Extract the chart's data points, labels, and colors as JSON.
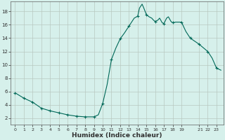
{
  "title": "",
  "xlabel": "Humidex (Indice chaleur)",
  "ylabel": "",
  "background_color": "#d6f0eb",
  "grid_color": "#b8c8c0",
  "line_color": "#006858",
  "marker_color": "#006858",
  "x_values": [
    0,
    1,
    2,
    3,
    4,
    5,
    6,
    7,
    8,
    9,
    9.5,
    10,
    10.5,
    11,
    11.5,
    12,
    12.5,
    13,
    13.3,
    13.6,
    14,
    14.2,
    14.5,
    14.7,
    15,
    15.3,
    15.6,
    15.8,
    16,
    16.3,
    16.5,
    16.8,
    17,
    17.3,
    17.5,
    17.8,
    18,
    18.3,
    18.5,
    19,
    19.5,
    20,
    21,
    22,
    22.5,
    23,
    23.5
  ],
  "y_values": [
    5.8,
    5.0,
    4.4,
    3.5,
    3.1,
    2.8,
    2.5,
    2.3,
    2.2,
    2.2,
    2.5,
    4.2,
    7.0,
    10.8,
    12.5,
    13.9,
    14.8,
    15.8,
    16.4,
    17.0,
    17.3,
    18.5,
    19.1,
    18.5,
    17.5,
    17.2,
    17.0,
    16.7,
    16.5,
    16.7,
    17.0,
    16.3,
    16.2,
    17.0,
    17.2,
    16.5,
    16.3,
    16.4,
    16.4,
    16.4,
    15.0,
    14.0,
    13.1,
    12.0,
    11.0,
    9.5,
    9.2
  ],
  "marker_x": [
    0,
    1,
    2,
    3,
    4,
    5,
    6,
    7,
    8,
    9,
    10,
    11,
    12,
    13,
    14,
    15,
    16,
    17,
    18,
    19,
    20,
    21,
    22,
    23
  ],
  "marker_y": [
    5.8,
    5.0,
    4.4,
    3.5,
    3.1,
    2.8,
    2.5,
    2.3,
    2.2,
    2.2,
    4.2,
    10.8,
    13.9,
    15.8,
    17.3,
    17.5,
    16.5,
    16.2,
    16.4,
    16.4,
    14.0,
    13.1,
    12.0,
    9.5
  ],
  "xlim": [
    -0.5,
    23.8
  ],
  "ylim": [
    1.0,
    19.5
  ],
  "yticks": [
    2,
    4,
    6,
    8,
    10,
    12,
    14,
    16,
    18
  ],
  "xtick_labels": [
    "0",
    "1",
    "2",
    "3",
    "4",
    "5",
    "6",
    "7",
    "8",
    "9",
    "10",
    "11",
    "12",
    "13",
    "14",
    "15",
    "16",
    "17",
    "18",
    "19",
    "  21",
    "22",
    "23"
  ],
  "xtick_positions": [
    0,
    1,
    2,
    3,
    4,
    5,
    6,
    7,
    8,
    9,
    10,
    11,
    12,
    13,
    14,
    15,
    16,
    17,
    18,
    19,
    21,
    22,
    23
  ]
}
